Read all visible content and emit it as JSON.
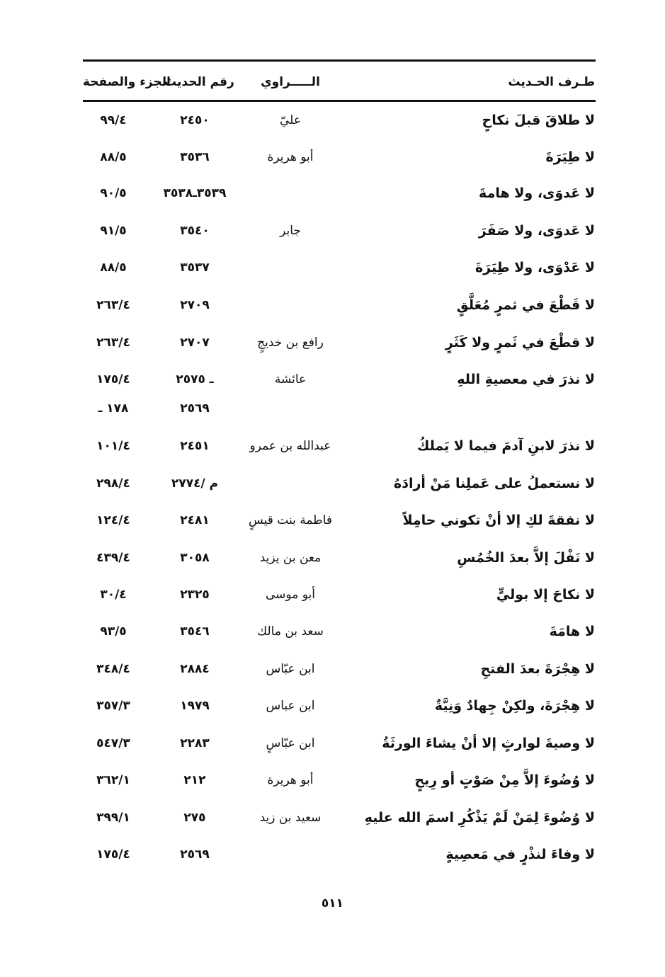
{
  "header": {
    "text": "طـرف الحـديث",
    "narrator": "الـــــراوي",
    "number": "رقم الحديث",
    "volume_page": "الجزء والصفحة"
  },
  "rows": [
    {
      "text": "لا طلاقَ قبلَ نكاحٍ",
      "narrator": "عليّ",
      "number": "٢٤٥٠",
      "vol": "٩٩/٤"
    },
    {
      "text": "لا طِيَرَةَ",
      "narrator": "أبو هريرة",
      "number": "٣٥٣٦",
      "vol": "٨٨/٥"
    },
    {
      "text": "لا عَدوَى، ولا هامةَ",
      "narrator": "",
      "number": "٣٥٣٩ـ٣٥٣٨",
      "vol": "٩٠/٥"
    },
    {
      "text": "لا عَدوَى، ولا صَفَرَ",
      "narrator": "جابر",
      "number": "٣٥٤٠",
      "vol": "٩١/٥"
    },
    {
      "text": "لا عَدْوَى، ولا طِيَرَةَ",
      "narrator": "",
      "number": "٣٥٣٧",
      "vol": "٨٨/٥"
    },
    {
      "text": "لا قَطْعَ في ثمرٍ مُعَلَّقٍ",
      "narrator": "",
      "number": "٢٧٠٩",
      "vol": "٢٦٣/٤"
    },
    {
      "text": "لا قطْعَ في ثَمرٍ ولا كَثَرٍ",
      "narrator": "رافع بن خديجٍ",
      "number": "٢٧٠٧",
      "vol": "٢٦٣/٤"
    },
    {
      "text": "لا نذرَ في معصيةِ اللهِ",
      "narrator": "عائشة",
      "number": "ـ ٢٥٧٥",
      "vol": "١٧٥/٤"
    },
    {
      "text": "",
      "narrator": "",
      "number": "٢٥٦٩",
      "vol": "١٧٨ ـ"
    },
    {
      "text": "لا نذرَ لابنِ آدمَ فيما لا يَملكُ",
      "narrator": "عبدالله بن عمرو",
      "number": "٢٤٥١",
      "vol": "١٠١/٤"
    },
    {
      "text": "لا نستعملُ على عَملِنا مَنْ أرادَهُ",
      "narrator": "",
      "number": "م /٢٧٧٤",
      "vol": "٢٩٨/٤"
    },
    {
      "text": "لا نفقةَ لكِ إلا أنْ تكوني حامِلاً",
      "narrator": "فاطمة بنت قيسٍ",
      "number": "٢٤٨١",
      "vol": "١٢٤/٤"
    },
    {
      "text": "لا نَفْلَ إلاَّ بعدَ الخُمُسِ",
      "narrator": "معن بن يزيد",
      "number": "٣٠٥٨",
      "vol": "٤٣٩/٤"
    },
    {
      "text": "لا نكاحَ إلا بوليٍّ",
      "narrator": "أبو موسى",
      "number": "٢٣٢٥",
      "vol": "٣٠/٤"
    },
    {
      "text": "لا هامَةَ",
      "narrator": "سعد بن مالك",
      "number": "٣٥٤٦",
      "vol": "٩٣/٥"
    },
    {
      "text": "لا هِجْرَةَ بعدَ الفتحِ",
      "narrator": "ابن عبّاس",
      "number": "٢٨٨٤",
      "vol": "٣٤٨/٤"
    },
    {
      "text": "لا هِجْرَةَ، ولكِنْ جِهادٌ وَنِيَّةٌ",
      "narrator": "ابن عباس",
      "number": "١٩٧٩",
      "vol": "٣٥٧/٣"
    },
    {
      "text": "لا وصيةَ لوارثٍ إلا أنْ يشاءَ الورثَةُ",
      "narrator": "ابن عبّاسٍ",
      "number": "٢٢٨٣",
      "vol": "٥٤٧/٣"
    },
    {
      "text": "لا وُضُوءَ إلاَّ مِنْ صَوْتٍ أو رِيحٍ",
      "narrator": "أبو هريرة",
      "number": "٢١٢",
      "vol": "٣٦٢/١"
    },
    {
      "text": "لا وُضُوءَ لِمَنْ لَمْ يَذْكُرِ اسمَ الله عليهِ",
      "narrator": "سعيد بن زيد",
      "number": "٢٧٥",
      "vol": "٣٩٩/١"
    },
    {
      "text": "لا وفاءَ لنذْرٍ في مَعصِيةٍ",
      "narrator": "",
      "number": "٢٥٦٩",
      "vol": "١٧٥/٤"
    }
  ],
  "page_number": "٥١١"
}
